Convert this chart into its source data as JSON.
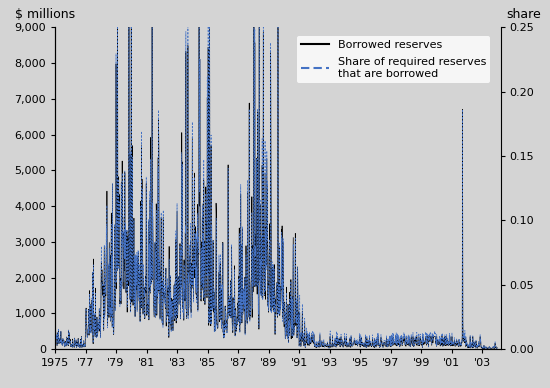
{
  "ylabel_left": "$ millions",
  "ylabel_right": "share",
  "xlim": [
    1975.0,
    2004.2
  ],
  "ylim_left": [
    0,
    9000
  ],
  "ylim_right": [
    0,
    0.25
  ],
  "bg_color": "#d4d4d4",
  "line1_color": "#000000",
  "line2_color": "#4472c4",
  "xticks": [
    1975,
    1977,
    1979,
    1981,
    1983,
    1985,
    1987,
    1989,
    1991,
    1993,
    1995,
    1997,
    1999,
    2001,
    2003
  ],
  "xtick_labels": [
    "1975",
    "'77",
    "'79",
    "'81",
    "'83",
    "'85",
    "'87",
    "'89",
    "'91",
    "'93",
    "'95",
    "'97",
    "'99",
    "'01",
    "'03"
  ],
  "yticks_left": [
    0,
    1000,
    2000,
    3000,
    4000,
    5000,
    6000,
    7000,
    8000,
    9000
  ],
  "yticks_right": [
    0.0,
    0.05,
    0.1,
    0.15,
    0.2,
    0.25
  ],
  "legend_items": [
    "Borrowed reserves",
    "Share of required reserves\nthat are borrowed"
  ]
}
